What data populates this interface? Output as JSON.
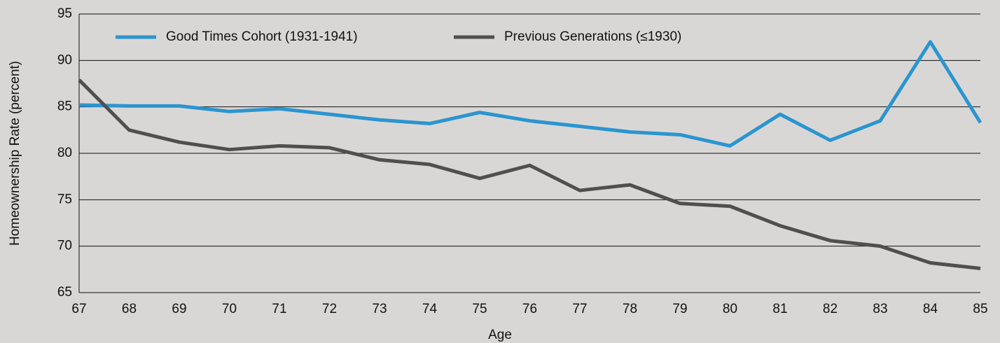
{
  "chart_data": {
    "type": "line",
    "xlabel": "Age",
    "ylabel": "Homeownership Rate (percent)",
    "x": [
      67,
      68,
      69,
      70,
      71,
      72,
      73,
      74,
      75,
      76,
      77,
      78,
      79,
      80,
      81,
      82,
      83,
      84,
      85
    ],
    "xlim": [
      67,
      85
    ],
    "xticks": [
      67,
      68,
      69,
      70,
      71,
      72,
      73,
      74,
      75,
      76,
      77,
      78,
      79,
      80,
      81,
      82,
      83,
      84,
      85
    ],
    "ylim": [
      65,
      95
    ],
    "yticks": [
      65,
      70,
      75,
      80,
      85,
      90,
      95
    ],
    "grid": true,
    "legend": "top-left",
    "series": [
      {
        "name": "Good Times Cohort (1931-1941)",
        "color": "#2a95d0",
        "values": [
          85.2,
          85.1,
          85.1,
          84.5,
          84.8,
          84.2,
          83.6,
          83.2,
          84.4,
          83.5,
          82.9,
          82.3,
          82.0,
          80.8,
          84.2,
          81.4,
          83.5,
          92.0,
          83.3
        ]
      },
      {
        "name": "Previous Generations (≤1930)",
        "color": "#4f4f4f",
        "values": [
          87.9,
          82.5,
          81.2,
          80.4,
          80.8,
          80.6,
          79.3,
          78.8,
          77.3,
          78.7,
          76.0,
          76.6,
          74.6,
          74.3,
          72.2,
          70.6,
          70.0,
          68.2,
          67.6
        ]
      }
    ]
  }
}
